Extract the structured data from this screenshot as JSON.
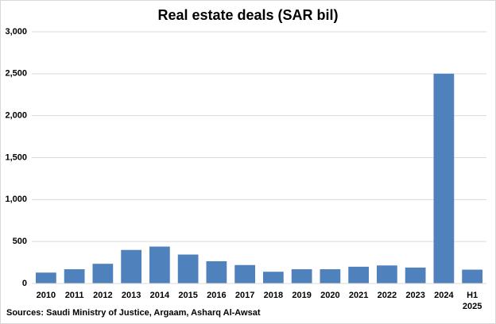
{
  "chart_data": {
    "type": "bar",
    "title": "Real estate deals (SAR bil)",
    "categories": [
      "2010",
      "2011",
      "2012",
      "2013",
      "2014",
      "2015",
      "2016",
      "2017",
      "2018",
      "2019",
      "2020",
      "2021",
      "2022",
      "2023",
      "2024",
      "H1 2025"
    ],
    "values": [
      130,
      170,
      235,
      400,
      440,
      345,
      265,
      220,
      140,
      170,
      170,
      200,
      215,
      190,
      2500,
      165
    ],
    "color": "#4f81bd",
    "ylim": [
      0,
      3000
    ],
    "yticks": [
      0,
      500,
      {
        "value": 1000,
        "label": "1,000"
      },
      {
        "value": 1500,
        "label": "1,500"
      },
      {
        "value": 2000,
        "label": "2,000"
      },
      {
        "value": 2500,
        "label": "2,500"
      },
      {
        "value": 3000,
        "label": "3,000"
      }
    ],
    "grid": true,
    "source": "Sources: Saudi Ministry of Justice, Argaam, Asharq Al-Awsat"
  }
}
